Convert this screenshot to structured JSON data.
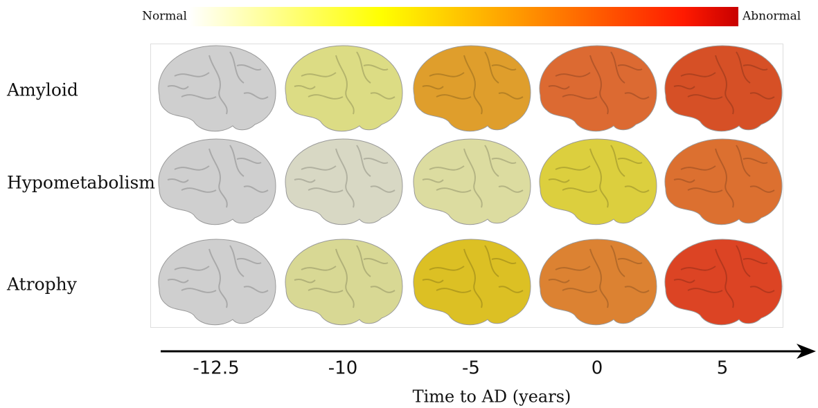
{
  "colorbar": {
    "low_label": "Normal",
    "high_label": "Abnormal"
  },
  "rows": [
    "Amyloid",
    "Hypometabolism",
    "Atrophy"
  ],
  "time_axis": {
    "ticks": [
      "-12.5",
      "-10",
      "-5",
      "0",
      "5"
    ],
    "label": "Time to AD (years)"
  }
}
